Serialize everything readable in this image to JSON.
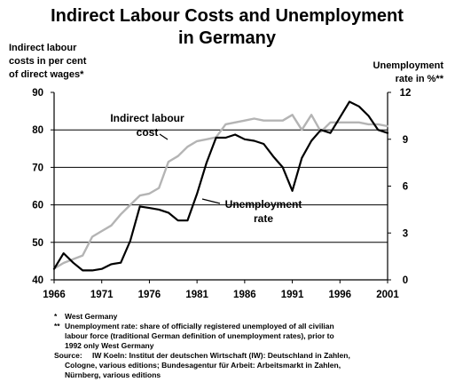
{
  "chart_data": {
    "type": "line",
    "title_lines": [
      "Indirect Labour Costs and Unemployment",
      "in Germany"
    ],
    "y_left_label_lines": [
      "Indirect labour",
      "costs in per cent",
      "of direct wages*"
    ],
    "y_right_label_lines": [
      "Unemployment",
      "rate in %**"
    ],
    "x_ticks": [
      "1966",
      "1971",
      "1976",
      "1981",
      "1986",
      "1991",
      "1996",
      "2001"
    ],
    "y_left_ticks": [
      "40",
      "50",
      "60",
      "70",
      "80",
      "90"
    ],
    "y_right_ticks": [
      "0",
      "3",
      "6",
      "9",
      "12"
    ],
    "xlim": [
      1966,
      2001
    ],
    "y_left_lim": [
      40,
      90
    ],
    "y_right_lim": [
      0,
      12
    ],
    "grid": "horizontal",
    "series": [
      {
        "name": "Indirect labour cost",
        "axis": "left",
        "color": "#b4b4b4",
        "annotation_lines": [
          "Indirect labour",
          "cost"
        ],
        "x": [
          1966,
          1967,
          1968,
          1969,
          1970,
          1971,
          1972,
          1973,
          1974,
          1975,
          1976,
          1977,
          1978,
          1979,
          1980,
          1981,
          1982,
          1983,
          1984,
          1985,
          1986,
          1987,
          1988,
          1989,
          1990,
          1991,
          1992,
          1993,
          1994,
          1995,
          1996,
          1997,
          1998,
          1999,
          2000,
          2001
        ],
        "values": [
          43.0,
          44.5,
          45.5,
          46.5,
          51.5,
          53.0,
          54.5,
          57.5,
          60.0,
          62.5,
          63.0,
          64.5,
          71.5,
          73.0,
          75.5,
          77.0,
          77.5,
          78.0,
          81.5,
          82.0,
          82.5,
          83.0,
          82.5,
          82.5,
          82.5,
          84.0,
          80.0,
          84.0,
          79.5,
          82.0,
          82.0,
          82.0,
          82.0,
          81.5,
          81.5,
          81.0
        ]
      },
      {
        "name": "Unemployment rate",
        "axis": "right",
        "color": "#000000",
        "annotation_lines": [
          "Unemployment",
          "rate"
        ],
        "x": [
          1966,
          1967,
          1968,
          1969,
          1970,
          1971,
          1972,
          1973,
          1974,
          1975,
          1976,
          1977,
          1978,
          1979,
          1980,
          1981,
          1982,
          1983,
          1984,
          1985,
          1986,
          1987,
          1988,
          1989,
          1990,
          1991,
          1992,
          1993,
          1994,
          1995,
          1996,
          1997,
          1998,
          1999,
          2000,
          2001
        ],
        "values": [
          0.7,
          1.7,
          1.1,
          0.6,
          0.6,
          0.7,
          1.0,
          1.1,
          2.5,
          4.7,
          4.6,
          4.5,
          4.3,
          3.8,
          3.8,
          5.5,
          7.5,
          9.1,
          9.1,
          9.3,
          9.0,
          8.9,
          8.7,
          7.9,
          7.2,
          5.7,
          7.8,
          8.9,
          9.6,
          9.4,
          10.4,
          11.4,
          11.1,
          10.5,
          9.6,
          9.4
        ]
      }
    ],
    "footnotes": [
      [
        "*",
        "West Germany"
      ],
      [
        "**",
        "Unemployment rate: share of officially registered unemployed of all civilian"
      ],
      [
        "",
        "labour force (traditional German definition of unemployment rates), prior to"
      ],
      [
        "",
        "1992 only West Germany"
      ],
      [
        "Source:",
        "IW Koeln: Institut der deutschen Wirtschaft (IW): Deutschland in Zahlen,"
      ],
      [
        "",
        "Cologne, various editions; Bundesagentur für Arbeit: Arbeitsmarkt in Zahlen,"
      ],
      [
        "",
        "Nürnberg, various editions"
      ]
    ]
  }
}
